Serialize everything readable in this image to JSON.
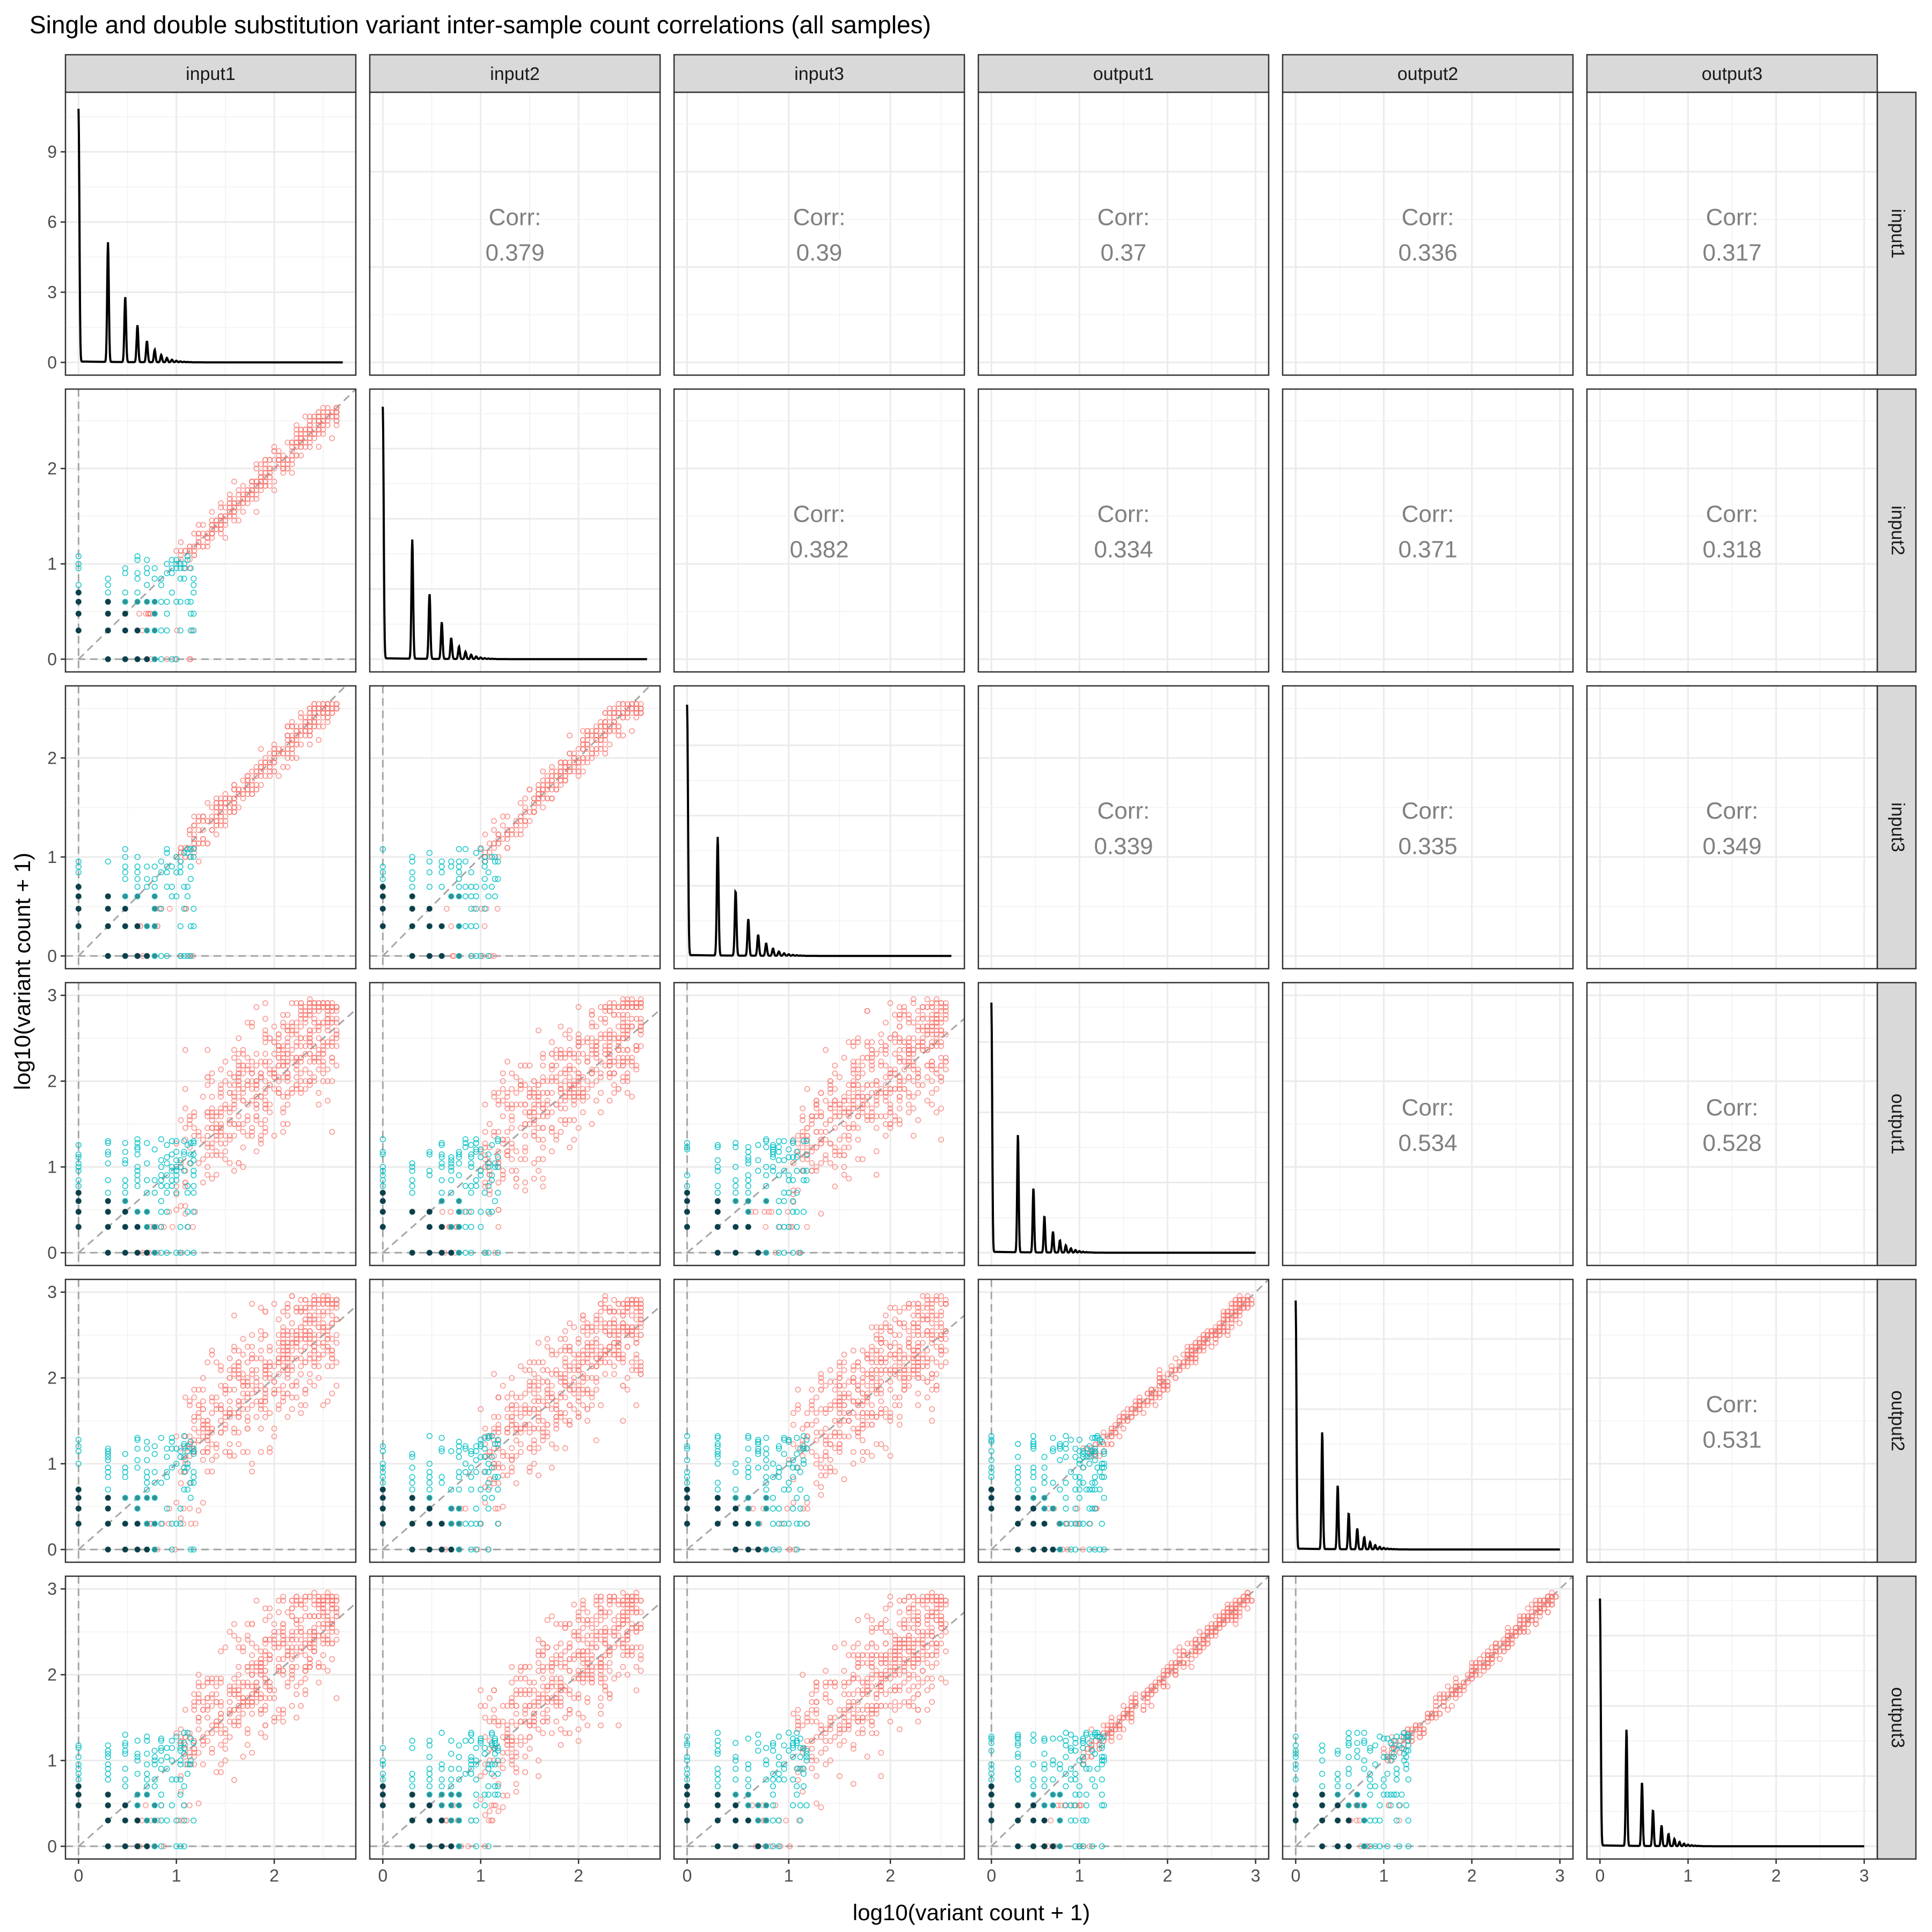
{
  "title": "Single and double substitution variant inter-sample count correlations (all samples)",
  "xlabel": "log10(variant count + 1)",
  "ylabel": "log10(variant count + 1)",
  "corr_label": "Corr:",
  "colors": {
    "single": "#f8766d",
    "double": "#00bfc4",
    "dense": "#0b3f4a",
    "refline": "#a6a6a6",
    "strip": "#d9d9d9"
  },
  "chart_data": {
    "type": "scatter",
    "samples": [
      "input1",
      "input2",
      "input3",
      "output1",
      "output2",
      "output3"
    ],
    "axis_limits": [
      [
        0,
        2.7
      ],
      [
        0,
        2.7
      ],
      [
        0,
        2.6
      ],
      [
        0,
        3.0
      ],
      [
        0,
        3.0
      ],
      [
        0,
        3.0
      ]
    ],
    "density_ylim": [
      0,
      11
    ],
    "density_yticks": [
      "0",
      "3",
      "6",
      "9"
    ],
    "tick_labels": {
      "small": [
        "0",
        "1",
        "2"
      ],
      "large": [
        "0",
        "1",
        "2",
        "3"
      ]
    },
    "correlations": [
      {
        "row": "input1",
        "col": "input2",
        "value": "0.379"
      },
      {
        "row": "input1",
        "col": "input3",
        "value": "0.39"
      },
      {
        "row": "input1",
        "col": "output1",
        "value": "0.37"
      },
      {
        "row": "input1",
        "col": "output2",
        "value": "0.336"
      },
      {
        "row": "input1",
        "col": "output3",
        "value": "0.317"
      },
      {
        "row": "input2",
        "col": "input3",
        "value": "0.382"
      },
      {
        "row": "input2",
        "col": "output1",
        "value": "0.334"
      },
      {
        "row": "input2",
        "col": "output2",
        "value": "0.371"
      },
      {
        "row": "input2",
        "col": "output3",
        "value": "0.318"
      },
      {
        "row": "input3",
        "col": "output1",
        "value": "0.339"
      },
      {
        "row": "input3",
        "col": "output2",
        "value": "0.335"
      },
      {
        "row": "input3",
        "col": "output3",
        "value": "0.349"
      },
      {
        "row": "output1",
        "col": "output2",
        "value": "0.534"
      },
      {
        "row": "output1",
        "col": "output3",
        "value": "0.528"
      },
      {
        "row": "output2",
        "col": "output3",
        "value": "0.531"
      }
    ],
    "reference_lines": [
      "x = 0",
      "y = 0",
      "y = x"
    ],
    "series": [
      {
        "description": "single substitution variants",
        "color": "#f8766d",
        "range": [
          1,
          3
        ]
      },
      {
        "description": "double substitution variants",
        "color": "#00bfc4",
        "range": [
          0,
          1.3
        ]
      }
    ],
    "grid": true,
    "legend": "none"
  }
}
